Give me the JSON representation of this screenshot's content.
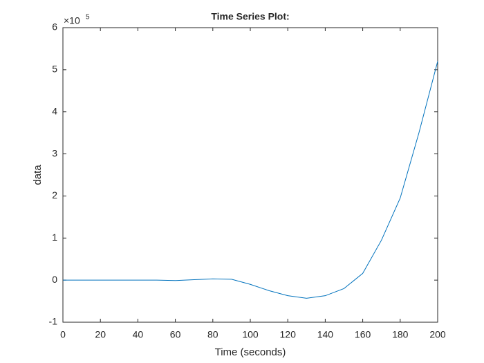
{
  "chart_data": {
    "type": "line",
    "title": "Time Series Plot:",
    "x_label": "Time (seconds)",
    "y_label": "data",
    "y_multiplier": "×10",
    "y_multiplier_exponent": "5",
    "x": [
      0,
      10,
      20,
      30,
      40,
      50,
      60,
      70,
      80,
      90,
      100,
      110,
      120,
      130,
      140,
      150,
      160,
      170,
      180,
      190,
      200
    ],
    "series": [
      {
        "name": "data",
        "color": "#0072bd",
        "values": [
          0,
          0,
          0,
          0,
          0,
          0,
          -0.01,
          0.01,
          0.03,
          0.02,
          -0.1,
          -0.25,
          -0.37,
          -0.43,
          -0.37,
          -0.2,
          0.16,
          0.95,
          1.95,
          3.5,
          5.2
        ]
      }
    ],
    "xlim": [
      0,
      200
    ],
    "xticks": [
      0,
      20,
      40,
      60,
      80,
      100,
      120,
      140,
      160,
      180,
      200
    ],
    "ylim": [
      -1,
      6
    ],
    "yticks": [
      -1,
      0,
      1,
      2,
      3,
      4,
      5,
      6
    ],
    "grid": false
  }
}
